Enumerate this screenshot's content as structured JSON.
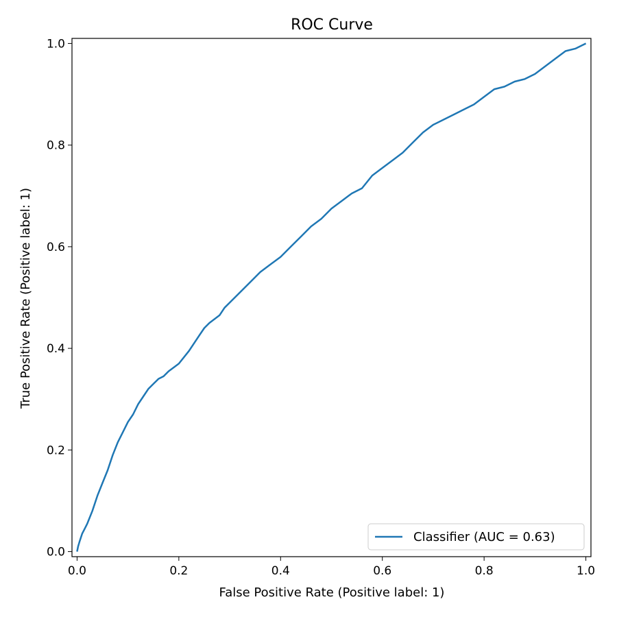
{
  "chart_data": {
    "type": "line",
    "title": "ROC Curve",
    "xlabel": "False Positive Rate (Positive label: 1)",
    "ylabel": "True Positive Rate (Positive label: 1)",
    "xlim": [
      -0.01,
      1.01
    ],
    "ylim": [
      -0.01,
      1.01
    ],
    "xticks": [
      "0.0",
      "0.2",
      "0.4",
      "0.6",
      "0.8",
      "1.0"
    ],
    "yticks": [
      "0.0",
      "0.2",
      "0.4",
      "0.6",
      "0.8",
      "1.0"
    ],
    "grid": false,
    "legend_position": "lower-right",
    "series": [
      {
        "name": "Classifier (AUC = 0.63)",
        "color": "#1f77b4",
        "x": [
          0.0,
          0.002,
          0.005,
          0.01,
          0.015,
          0.02,
          0.03,
          0.04,
          0.05,
          0.06,
          0.07,
          0.08,
          0.09,
          0.1,
          0.11,
          0.12,
          0.13,
          0.14,
          0.15,
          0.16,
          0.17,
          0.18,
          0.2,
          0.22,
          0.23,
          0.24,
          0.25,
          0.26,
          0.28,
          0.29,
          0.3,
          0.32,
          0.34,
          0.36,
          0.38,
          0.4,
          0.42,
          0.44,
          0.46,
          0.48,
          0.5,
          0.52,
          0.54,
          0.56,
          0.58,
          0.6,
          0.62,
          0.64,
          0.66,
          0.68,
          0.7,
          0.72,
          0.74,
          0.76,
          0.78,
          0.8,
          0.82,
          0.84,
          0.86,
          0.88,
          0.9,
          0.92,
          0.94,
          0.96,
          0.98,
          1.0
        ],
        "y": [
          0.0,
          0.01,
          0.02,
          0.035,
          0.045,
          0.055,
          0.08,
          0.11,
          0.135,
          0.16,
          0.19,
          0.215,
          0.235,
          0.255,
          0.27,
          0.29,
          0.305,
          0.32,
          0.33,
          0.34,
          0.345,
          0.355,
          0.37,
          0.395,
          0.41,
          0.425,
          0.44,
          0.45,
          0.465,
          0.48,
          0.49,
          0.51,
          0.53,
          0.55,
          0.565,
          0.58,
          0.6,
          0.62,
          0.64,
          0.655,
          0.675,
          0.69,
          0.705,
          0.715,
          0.74,
          0.755,
          0.77,
          0.785,
          0.805,
          0.825,
          0.84,
          0.85,
          0.86,
          0.87,
          0.88,
          0.895,
          0.91,
          0.915,
          0.925,
          0.93,
          0.94,
          0.955,
          0.97,
          0.985,
          0.99,
          1.0
        ]
      }
    ]
  }
}
